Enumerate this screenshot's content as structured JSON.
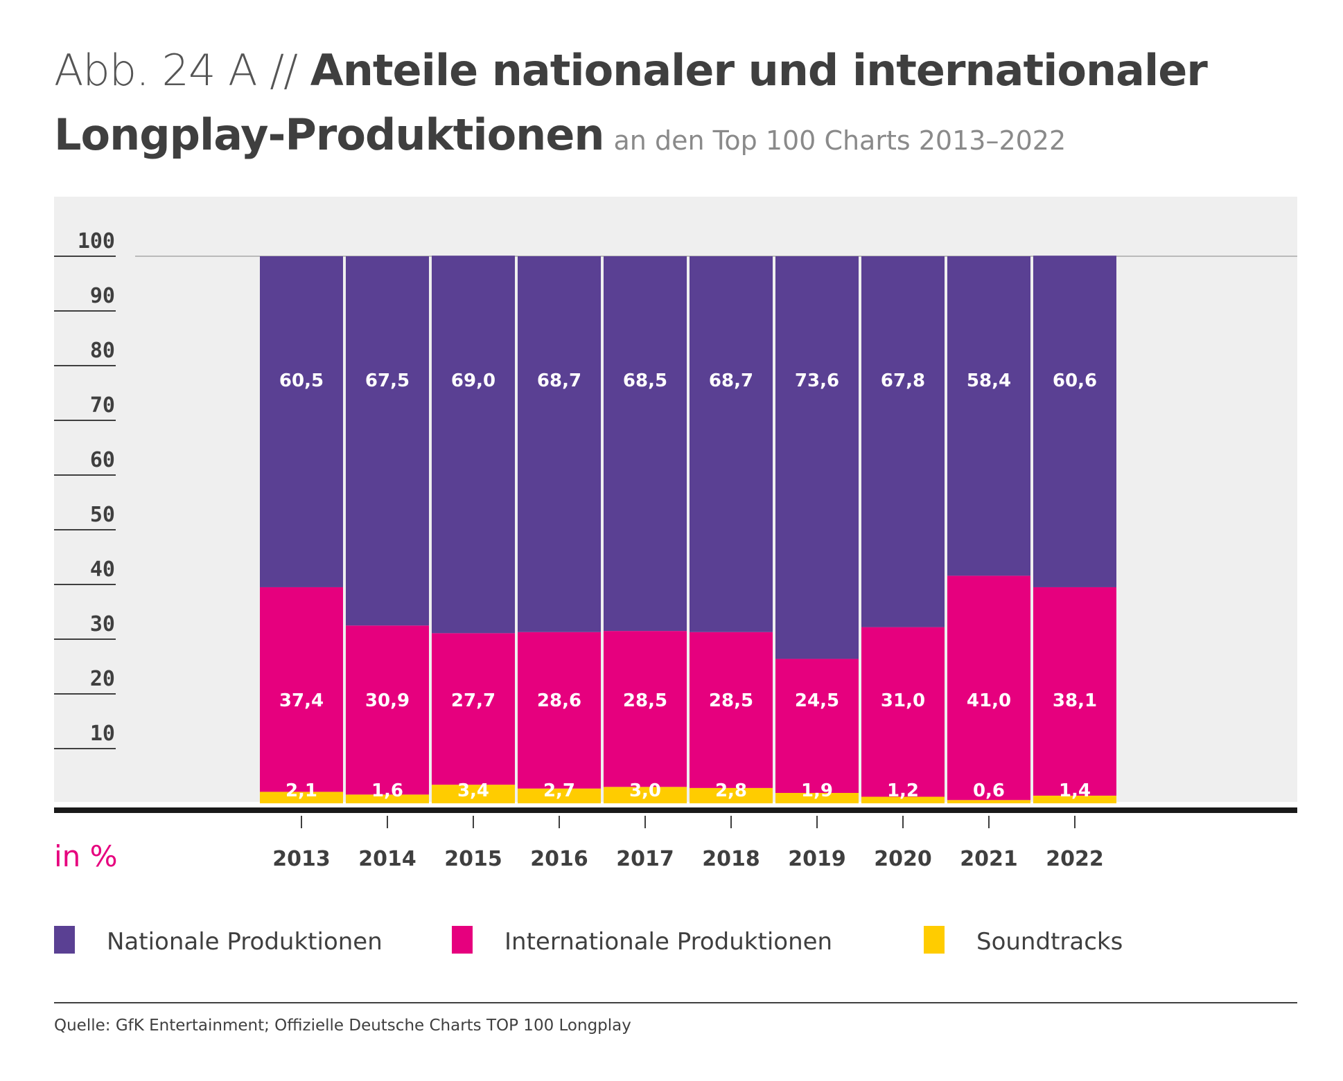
{
  "header": {
    "prefix": "Abb. 24 A //",
    "title_line1": "Anteile nationaler und internationaler",
    "title_line2": "Longplay-Produktionen",
    "subtitle": "an den Top 100 Charts 2013–2022"
  },
  "unit_label": "in %",
  "legend": [
    {
      "label": "Nationale Produktionen",
      "color": "#5a4093"
    },
    {
      "label": "Internationale Produktionen",
      "color": "#e6007e"
    },
    {
      "label": "Soundtracks",
      "color": "#ffcc00"
    }
  ],
  "source": "Quelle: GfK Entertainment; Offizielle Deutsche Charts TOP 100 Longplay",
  "chart_data": {
    "type": "bar",
    "stacked": true,
    "categories": [
      "2013",
      "2014",
      "2015",
      "2016",
      "2017",
      "2018",
      "2019",
      "2020",
      "2021",
      "2022"
    ],
    "series": [
      {
        "name": "Soundtracks",
        "color": "#ffcc00",
        "values": [
          2.1,
          1.6,
          3.4,
          2.7,
          3.0,
          2.8,
          1.9,
          1.2,
          0.6,
          1.4
        ],
        "labels": [
          "2,1",
          "1,6",
          "3,4",
          "2,7",
          "3,0",
          "2,8",
          "1,9",
          "1,2",
          "0,6",
          "1,4"
        ]
      },
      {
        "name": "Internationale Produktionen",
        "color": "#e6007e",
        "values": [
          37.4,
          30.9,
          27.7,
          28.6,
          28.5,
          28.5,
          24.5,
          31.0,
          41.0,
          38.1
        ],
        "labels": [
          "37,4",
          "30,9",
          "27,7",
          "28,6",
          "28,5",
          "28,5",
          "24,5",
          "31,0",
          "41,0",
          "38,1"
        ]
      },
      {
        "name": "Nationale Produktionen",
        "color": "#5a4093",
        "values": [
          60.5,
          67.5,
          69.0,
          68.7,
          68.5,
          68.7,
          73.6,
          67.8,
          58.4,
          60.6
        ],
        "labels": [
          "60,5",
          "67,5",
          "69,0",
          "68,7",
          "68,5",
          "68,7",
          "73,6",
          "67,8",
          "58,4",
          "60,6"
        ]
      }
    ],
    "y_ticks": [
      "10",
      "20",
      "30",
      "40",
      "50",
      "60",
      "70",
      "80",
      "90",
      "100"
    ],
    "ylim": [
      0,
      100
    ],
    "ylabel": "in %"
  }
}
